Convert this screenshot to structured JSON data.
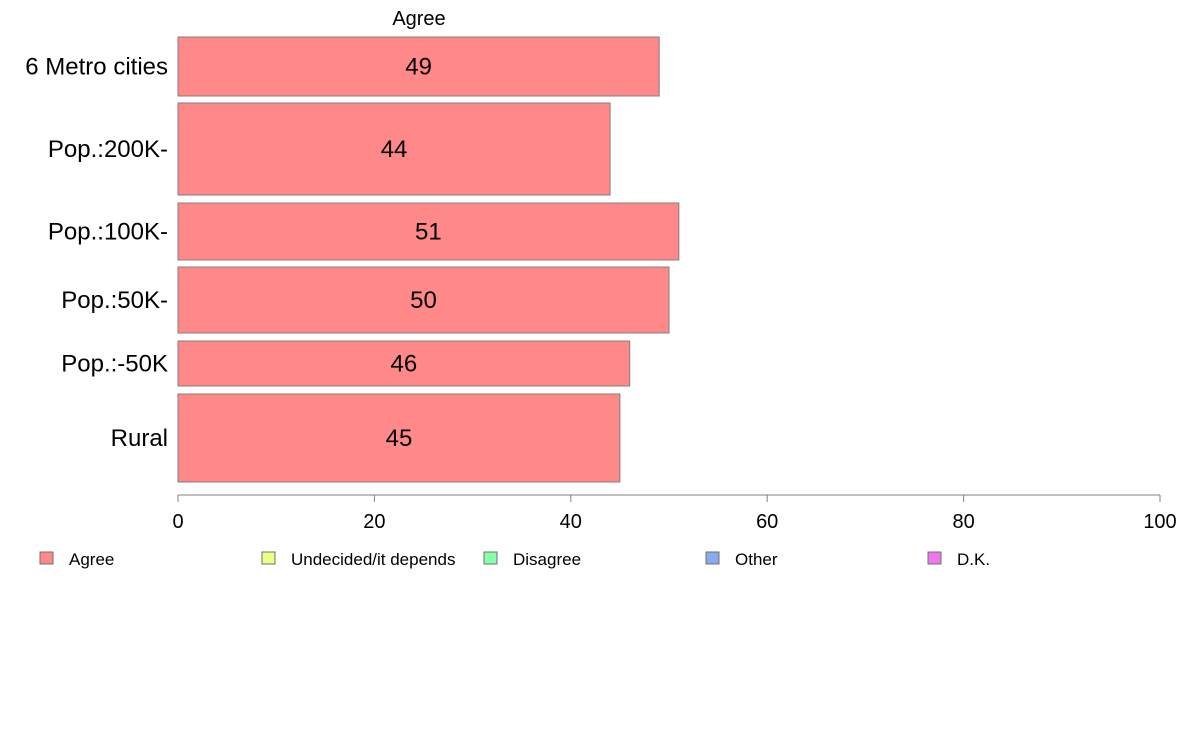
{
  "chart_data": {
    "type": "bar",
    "orientation": "horizontal",
    "title": "Agree",
    "categories": [
      "6 Metro cities",
      "Pop.:200K-",
      "Pop.:100K-",
      "Pop.:50K-",
      "Pop.:-50K",
      "Rural"
    ],
    "series": [
      {
        "name": "Agree",
        "color": "#ff8888",
        "values": [
          49,
          44,
          51,
          50,
          46,
          45
        ]
      }
    ],
    "xlim": [
      0,
      100
    ],
    "xticks": [
      0,
      20,
      40,
      60,
      80,
      100
    ],
    "grid": false,
    "legend_position": "bottom",
    "legend": [
      {
        "label": "Agree",
        "color": "#ff8888"
      },
      {
        "label": "Undecided/it depends",
        "color": "#eeff88"
      },
      {
        "label": "Disagree",
        "color": "#88ffaa"
      },
      {
        "label": "Other",
        "color": "#88aaee"
      },
      {
        "label": "D.K.",
        "color": "#ee77ee"
      }
    ]
  }
}
